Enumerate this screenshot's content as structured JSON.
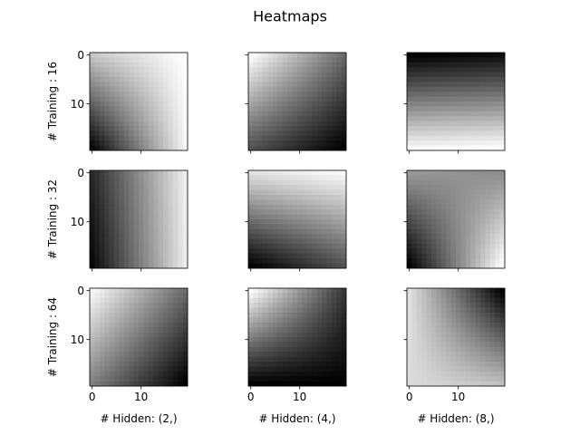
{
  "chart_data": {
    "type": "heatmap",
    "title": "Heatmaps",
    "colormap": "gray",
    "grid": false,
    "matrix_size": [
      20,
      20
    ],
    "value_range": [
      0,
      1
    ],
    "row_labels": [
      "# Training : 16",
      "# Training : 32",
      "# Training : 64"
    ],
    "col_labels": [
      "# Hidden: (2,)",
      "# Hidden: (4,)",
      "# Hidden: (8,)"
    ],
    "x_ticks": [
      0,
      10
    ],
    "y_ticks": [
      0,
      10
    ],
    "panels": [
      {
        "row": 0,
        "col": 0,
        "corners": {
          "top_left": 0.78,
          "top_right": 1.0,
          "bottom_left": 0.02,
          "bottom_right": 0.96
        }
      },
      {
        "row": 0,
        "col": 1,
        "corners": {
          "top_left": 1.0,
          "top_right": 0.42,
          "bottom_left": 0.32,
          "bottom_right": 0.0
        }
      },
      {
        "row": 0,
        "col": 2,
        "corners": {
          "top_left": 0.0,
          "top_right": 0.05,
          "bottom_left": 0.97,
          "bottom_right": 1.0
        }
      },
      {
        "row": 1,
        "col": 0,
        "corners": {
          "top_left": 0.16,
          "top_right": 0.93,
          "bottom_left": 0.03,
          "bottom_right": 0.92
        }
      },
      {
        "row": 1,
        "col": 1,
        "corners": {
          "top_left": 0.88,
          "top_right": 0.98,
          "bottom_left": 0.0,
          "bottom_right": 0.32
        }
      },
      {
        "row": 1,
        "col": 2,
        "corners": {
          "top_left": 0.6,
          "top_right": 0.55,
          "bottom_left": 0.0,
          "bottom_right": 1.0
        }
      },
      {
        "row": 2,
        "col": 0,
        "corners": {
          "top_left": 0.98,
          "top_right": 0.42,
          "bottom_left": 0.5,
          "bottom_right": 0.0
        }
      },
      {
        "row": 2,
        "col": 1,
        "corners": {
          "top_left": 1.0,
          "top_right": 0.22,
          "bottom_left": 0.0,
          "bottom_right": 0.0
        }
      },
      {
        "row": 2,
        "col": 2,
        "corners": {
          "top_left": 0.88,
          "top_right": 0.0,
          "bottom_left": 0.86,
          "bottom_right": 0.75
        }
      }
    ]
  }
}
